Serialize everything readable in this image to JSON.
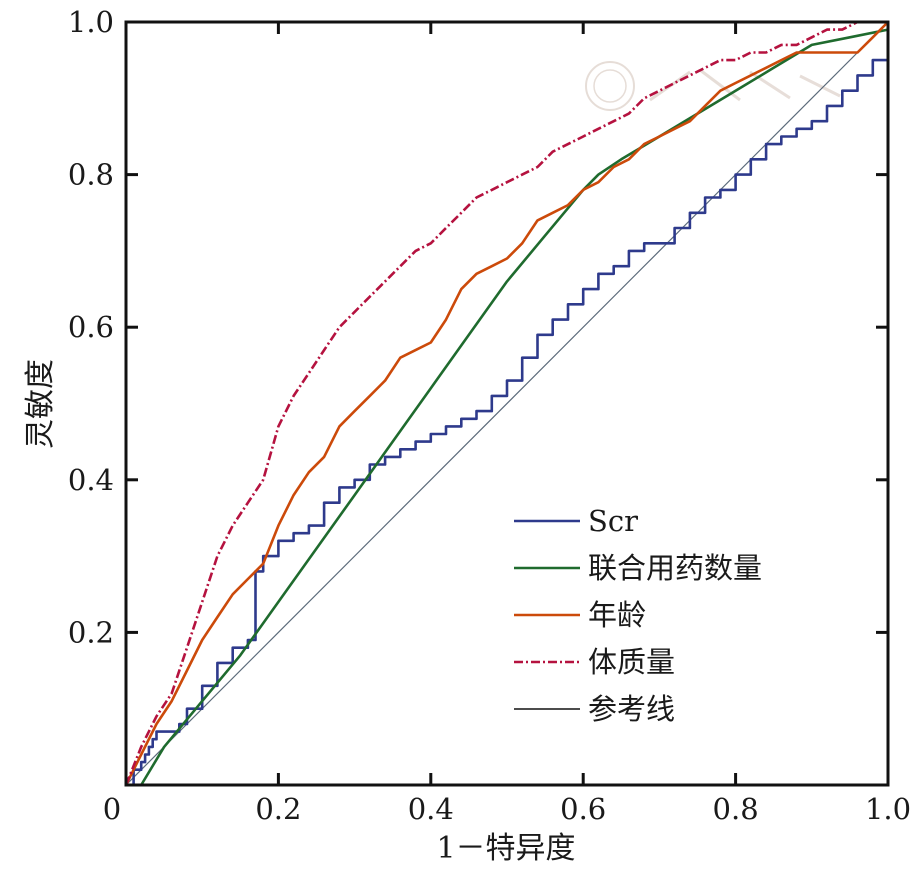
{
  "chart_data": {
    "type": "line",
    "title": "",
    "xlabel": "1－特异度",
    "ylabel": "灵敏度",
    "xlim": [
      0,
      1
    ],
    "ylim": [
      0,
      1
    ],
    "x_ticks": [
      "0",
      "0.2",
      "0.4",
      "0.6",
      "0.8",
      "1.0"
    ],
    "y_ticks": [
      "0.2",
      "0.4",
      "0.6",
      "0.8",
      "1.0"
    ],
    "grid": false,
    "legend_position": "bottom-right",
    "series": [
      {
        "name": "Scr",
        "color": "#2e3a8c",
        "style": "solid",
        "step": true,
        "x": [
          0.0,
          0.01,
          0.02,
          0.025,
          0.03,
          0.035,
          0.04,
          0.045,
          0.05,
          0.06,
          0.07,
          0.08,
          0.1,
          0.12,
          0.14,
          0.16,
          0.17,
          0.18,
          0.2,
          0.22,
          0.24,
          0.26,
          0.28,
          0.3,
          0.32,
          0.34,
          0.36,
          0.38,
          0.4,
          0.42,
          0.44,
          0.46,
          0.48,
          0.5,
          0.52,
          0.54,
          0.56,
          0.58,
          0.6,
          0.62,
          0.64,
          0.66,
          0.68,
          0.7,
          0.72,
          0.74,
          0.76,
          0.78,
          0.8,
          0.82,
          0.84,
          0.86,
          0.88,
          0.9,
          0.92,
          0.94,
          0.96,
          0.98,
          1.0,
          1.0
        ],
        "y": [
          0.0,
          0.02,
          0.03,
          0.04,
          0.05,
          0.06,
          0.07,
          0.07,
          0.07,
          0.07,
          0.08,
          0.1,
          0.13,
          0.16,
          0.18,
          0.19,
          0.28,
          0.3,
          0.32,
          0.33,
          0.34,
          0.37,
          0.39,
          0.4,
          0.42,
          0.43,
          0.44,
          0.45,
          0.46,
          0.47,
          0.48,
          0.49,
          0.51,
          0.53,
          0.56,
          0.59,
          0.61,
          0.63,
          0.65,
          0.67,
          0.68,
          0.7,
          0.71,
          0.71,
          0.73,
          0.75,
          0.77,
          0.78,
          0.8,
          0.82,
          0.84,
          0.85,
          0.86,
          0.87,
          0.89,
          0.91,
          0.93,
          0.95,
          0.96,
          1.0
        ]
      },
      {
        "name": "联合用药数量",
        "color": "#1f6b2e",
        "style": "solid",
        "step": false,
        "x": [
          0.02,
          0.05,
          0.1,
          0.15,
          0.2,
          0.25,
          0.3,
          0.35,
          0.4,
          0.45,
          0.5,
          0.55,
          0.6,
          0.62,
          0.65,
          0.7,
          0.75,
          0.8,
          0.85,
          0.9,
          0.95,
          1.0
        ],
        "y": [
          0.0,
          0.05,
          0.11,
          0.17,
          0.24,
          0.31,
          0.38,
          0.45,
          0.52,
          0.59,
          0.66,
          0.72,
          0.78,
          0.8,
          0.82,
          0.85,
          0.88,
          0.91,
          0.94,
          0.97,
          0.98,
          0.99
        ]
      },
      {
        "name": "年龄",
        "color": "#cc4a0a",
        "style": "solid",
        "step": false,
        "x": [
          0.0,
          0.02,
          0.04,
          0.06,
          0.08,
          0.1,
          0.12,
          0.14,
          0.16,
          0.18,
          0.2,
          0.22,
          0.24,
          0.26,
          0.28,
          0.3,
          0.32,
          0.34,
          0.36,
          0.38,
          0.4,
          0.42,
          0.44,
          0.46,
          0.48,
          0.5,
          0.52,
          0.54,
          0.56,
          0.58,
          0.6,
          0.62,
          0.64,
          0.66,
          0.68,
          0.7,
          0.72,
          0.74,
          0.76,
          0.78,
          0.8,
          0.82,
          0.84,
          0.86,
          0.88,
          0.9,
          0.92,
          0.94,
          0.96,
          0.98,
          1.0
        ],
        "y": [
          0.0,
          0.04,
          0.08,
          0.11,
          0.15,
          0.19,
          0.22,
          0.25,
          0.27,
          0.29,
          0.34,
          0.38,
          0.41,
          0.43,
          0.47,
          0.49,
          0.51,
          0.53,
          0.56,
          0.57,
          0.58,
          0.61,
          0.65,
          0.67,
          0.68,
          0.69,
          0.71,
          0.74,
          0.75,
          0.76,
          0.78,
          0.79,
          0.81,
          0.82,
          0.84,
          0.85,
          0.86,
          0.87,
          0.89,
          0.91,
          0.92,
          0.93,
          0.94,
          0.95,
          0.96,
          0.96,
          0.96,
          0.96,
          0.96,
          0.98,
          1.0
        ]
      },
      {
        "name": "体质量",
        "color": "#b5123f",
        "style": "dashdot",
        "step": false,
        "x": [
          0.0,
          0.02,
          0.04,
          0.06,
          0.08,
          0.1,
          0.12,
          0.14,
          0.16,
          0.18,
          0.2,
          0.22,
          0.24,
          0.26,
          0.28,
          0.3,
          0.32,
          0.34,
          0.36,
          0.38,
          0.4,
          0.42,
          0.44,
          0.46,
          0.48,
          0.5,
          0.52,
          0.54,
          0.56,
          0.58,
          0.6,
          0.62,
          0.64,
          0.66,
          0.68,
          0.7,
          0.72,
          0.74,
          0.76,
          0.78,
          0.8,
          0.82,
          0.84,
          0.86,
          0.88,
          0.9,
          0.92,
          0.94,
          0.96,
          0.98,
          1.0
        ],
        "y": [
          0.0,
          0.05,
          0.09,
          0.12,
          0.18,
          0.24,
          0.3,
          0.34,
          0.37,
          0.4,
          0.47,
          0.51,
          0.54,
          0.57,
          0.6,
          0.62,
          0.64,
          0.66,
          0.68,
          0.7,
          0.71,
          0.73,
          0.75,
          0.77,
          0.78,
          0.79,
          0.8,
          0.81,
          0.83,
          0.84,
          0.85,
          0.86,
          0.87,
          0.88,
          0.9,
          0.91,
          0.92,
          0.93,
          0.94,
          0.95,
          0.95,
          0.96,
          0.96,
          0.97,
          0.97,
          0.98,
          0.99,
          0.99,
          1.0,
          1.0,
          1.0
        ]
      },
      {
        "name": "参考线",
        "color": "#5b6a7a",
        "style": "solid",
        "step": false,
        "x": [
          0.0,
          1.0
        ],
        "y": [
          0.0,
          1.0
        ]
      }
    ]
  }
}
